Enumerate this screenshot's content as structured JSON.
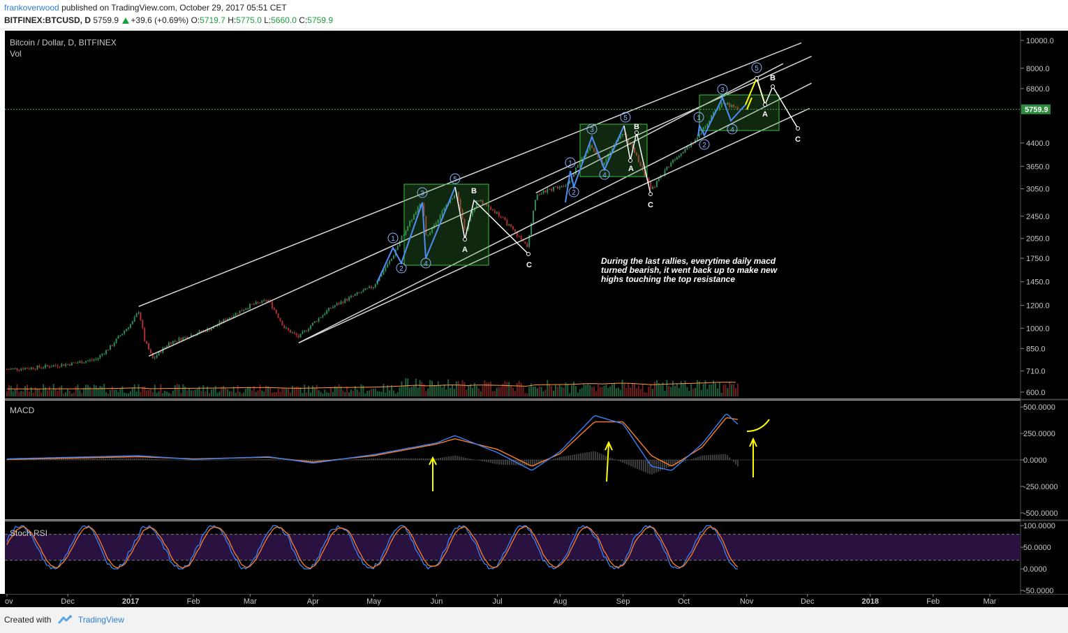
{
  "header": {
    "author": "frankoverwood",
    "published_text": "published on TradingView.com, October 29, 2017 05:51 CET",
    "symbol": "BITFINEX:BTCUSD, D",
    "last": "5759.9",
    "change": "+39.6 (+0.69%)",
    "o_label": "O:",
    "o_value": "5719.7",
    "h_label": "H:",
    "h_value": "5775.0",
    "l_label": "L:",
    "l_value": "5660.0",
    "c_label": "C:",
    "c_value": "5759.9"
  },
  "footer": {
    "created_with": "Created with",
    "brand": "TradingView"
  },
  "colors": {
    "background": "#000000",
    "up": "#2e8b57",
    "down": "#b03030",
    "macd": "#3b82f6",
    "signal": "#ff7f27",
    "annotation": "#ffff00"
  },
  "chart_data": [
    {
      "type": "candlestick",
      "title": "Bitcoin / Dollar, D, BITFINEX",
      "subtitle": "Vol",
      "y_scale": "log",
      "ylim": [
        570,
        10800
      ],
      "y_ticks": [
        "10000.0",
        "8000.0",
        "6800.0",
        "4400.0",
        "3650.0",
        "3050.0",
        "2450.0",
        "2050.0",
        "1750.0",
        "1450.0",
        "1200.0",
        "1000.0",
        "850.0",
        "710.0",
        "600.0"
      ],
      "last_price_label": "5759.9",
      "close_path": [
        {
          "d": "2016-11-01",
          "v": 720
        },
        {
          "d": "2016-11-15",
          "v": 730
        },
        {
          "d": "2016-12-01",
          "v": 750
        },
        {
          "d": "2016-12-15",
          "v": 780
        },
        {
          "d": "2016-12-22",
          "v": 860
        },
        {
          "d": "2017-01-02",
          "v": 1050
        },
        {
          "d": "2017-01-05",
          "v": 1150
        },
        {
          "d": "2017-01-08",
          "v": 900
        },
        {
          "d": "2017-01-12",
          "v": 780
        },
        {
          "d": "2017-01-20",
          "v": 890
        },
        {
          "d": "2017-02-10",
          "v": 1000
        },
        {
          "d": "2017-03-01",
          "v": 1200
        },
        {
          "d": "2017-03-10",
          "v": 1250
        },
        {
          "d": "2017-03-18",
          "v": 1000
        },
        {
          "d": "2017-03-25",
          "v": 930
        },
        {
          "d": "2017-04-10",
          "v": 1180
        },
        {
          "d": "2017-05-01",
          "v": 1400
        },
        {
          "d": "2017-05-10",
          "v": 1750
        },
        {
          "d": "2017-05-25",
          "v": 2750
        },
        {
          "d": "2017-05-27",
          "v": 2050
        },
        {
          "d": "2017-06-11",
          "v": 3000
        },
        {
          "d": "2017-06-15",
          "v": 2150
        },
        {
          "d": "2017-06-21",
          "v": 2800
        },
        {
          "d": "2017-07-01",
          "v": 2500
        },
        {
          "d": "2017-07-16",
          "v": 1900
        },
        {
          "d": "2017-07-20",
          "v": 2900
        },
        {
          "d": "2017-08-05",
          "v": 3200
        },
        {
          "d": "2017-08-16",
          "v": 4300
        },
        {
          "d": "2017-08-22",
          "v": 3700
        },
        {
          "d": "2017-09-01",
          "v": 4800
        },
        {
          "d": "2017-09-15",
          "v": 3000
        },
        {
          "d": "2017-09-25",
          "v": 3800
        },
        {
          "d": "2017-10-08",
          "v": 4600
        },
        {
          "d": "2017-10-20",
          "v": 6100
        },
        {
          "d": "2017-10-28",
          "v": 5760
        }
      ],
      "channel_lines": [
        {
          "from": {
            "d": "2017-01-05",
            "v": 1190
          },
          "to": {
            "d": "2017-11-28",
            "v": 9800
          }
        },
        {
          "from": {
            "d": "2017-01-10",
            "v": 800
          },
          "to": {
            "d": "2017-12-03",
            "v": 8800
          }
        },
        {
          "from": {
            "d": "2017-03-25",
            "v": 890
          },
          "to": {
            "d": "2017-12-03",
            "v": 7100
          }
        },
        {
          "from": {
            "d": "2017-07-20",
            "v": 2950
          },
          "to": {
            "d": "2017-11-19",
            "v": 8300
          }
        },
        {
          "from": {
            "d": "2017-03-25",
            "v": 890
          },
          "to": {
            "d": "2017-12-02",
            "v": 5800
          }
        }
      ],
      "wave_labels": [
        "1",
        "2",
        "3",
        "4",
        "5",
        "A",
        "B",
        "C"
      ],
      "text_annotation": "During the last rallies, everytime daily macd turned bearish, it went back up to make new highs touching the top resistance"
    },
    {
      "type": "line",
      "title": "MACD",
      "ylim": [
        -560,
        560
      ],
      "y_ticks": [
        "500.0000",
        "250.0000",
        "0.0000",
        "-250.0000",
        "-500.0000"
      ],
      "series": [
        {
          "points": [
            {
              "d": "2016-11-01",
              "v": 10
            },
            {
              "d": "2017-01-05",
              "v": 40
            },
            {
              "d": "2017-02-01",
              "v": 5
            },
            {
              "d": "2017-03-10",
              "v": 30
            },
            {
              "d": "2017-04-01",
              "v": -30
            },
            {
              "d": "2017-05-01",
              "v": 50
            },
            {
              "d": "2017-06-01",
              "v": 160
            },
            {
              "d": "2017-06-10",
              "v": 230
            },
            {
              "d": "2017-07-01",
              "v": 70
            },
            {
              "d": "2017-07-18",
              "v": -100
            },
            {
              "d": "2017-08-01",
              "v": 80
            },
            {
              "d": "2017-08-18",
              "v": 420
            },
            {
              "d": "2017-09-01",
              "v": 340
            },
            {
              "d": "2017-09-15",
              "v": -60
            },
            {
              "d": "2017-09-25",
              "v": -100
            },
            {
              "d": "2017-10-10",
              "v": 150
            },
            {
              "d": "2017-10-22",
              "v": 440
            },
            {
              "d": "2017-10-28",
              "v": 330
            }
          ]
        },
        {
          "points": [
            {
              "d": "2016-11-01",
              "v": 5
            },
            {
              "d": "2017-01-05",
              "v": 30
            },
            {
              "d": "2017-02-01",
              "v": 10
            },
            {
              "d": "2017-03-10",
              "v": 25
            },
            {
              "d": "2017-04-01",
              "v": -20
            },
            {
              "d": "2017-05-01",
              "v": 40
            },
            {
              "d": "2017-06-01",
              "v": 150
            },
            {
              "d": "2017-06-10",
              "v": 200
            },
            {
              "d": "2017-07-01",
              "v": 100
            },
            {
              "d": "2017-07-18",
              "v": -60
            },
            {
              "d": "2017-08-01",
              "v": 60
            },
            {
              "d": "2017-08-18",
              "v": 360
            },
            {
              "d": "2017-09-01",
              "v": 360
            },
            {
              "d": "2017-09-15",
              "v": 40
            },
            {
              "d": "2017-09-25",
              "v": -60
            },
            {
              "d": "2017-10-10",
              "v": 120
            },
            {
              "d": "2017-10-22",
              "v": 400
            },
            {
              "d": "2017-10-28",
              "v": 380
            }
          ]
        }
      ]
    },
    {
      "type": "line",
      "title": "Stoch RSI",
      "ylim": [
        -58,
        110
      ],
      "y_ticks": [
        "100.0000",
        "50.0000",
        "0.0000",
        "-50.0000"
      ],
      "band": [
        20,
        80
      ]
    }
  ],
  "x_axis": {
    "labels": [
      {
        "text": "ov",
        "d": "2016-11-01"
      },
      {
        "text": "Dec",
        "d": "2016-12-01"
      },
      {
        "text": "2017",
        "d": "2017-01-01"
      },
      {
        "text": "Feb",
        "d": "2017-02-01"
      },
      {
        "text": "Mar",
        "d": "2017-03-01"
      },
      {
        "text": "Apr",
        "d": "2017-04-01"
      },
      {
        "text": "May",
        "d": "2017-05-01"
      },
      {
        "text": "Jun",
        "d": "2017-06-01"
      },
      {
        "text": "Jul",
        "d": "2017-07-01"
      },
      {
        "text": "Aug",
        "d": "2017-08-01"
      },
      {
        "text": "Sep",
        "d": "2017-09-01"
      },
      {
        "text": "Oct",
        "d": "2017-10-01"
      },
      {
        "text": "Nov",
        "d": "2017-11-01"
      },
      {
        "text": "Dec",
        "d": "2017-12-01"
      },
      {
        "text": "2018",
        "d": "2018-01-01"
      },
      {
        "text": "Feb",
        "d": "2018-02-01"
      },
      {
        "text": "Mar",
        "d": "2018-03-01"
      }
    ]
  }
}
